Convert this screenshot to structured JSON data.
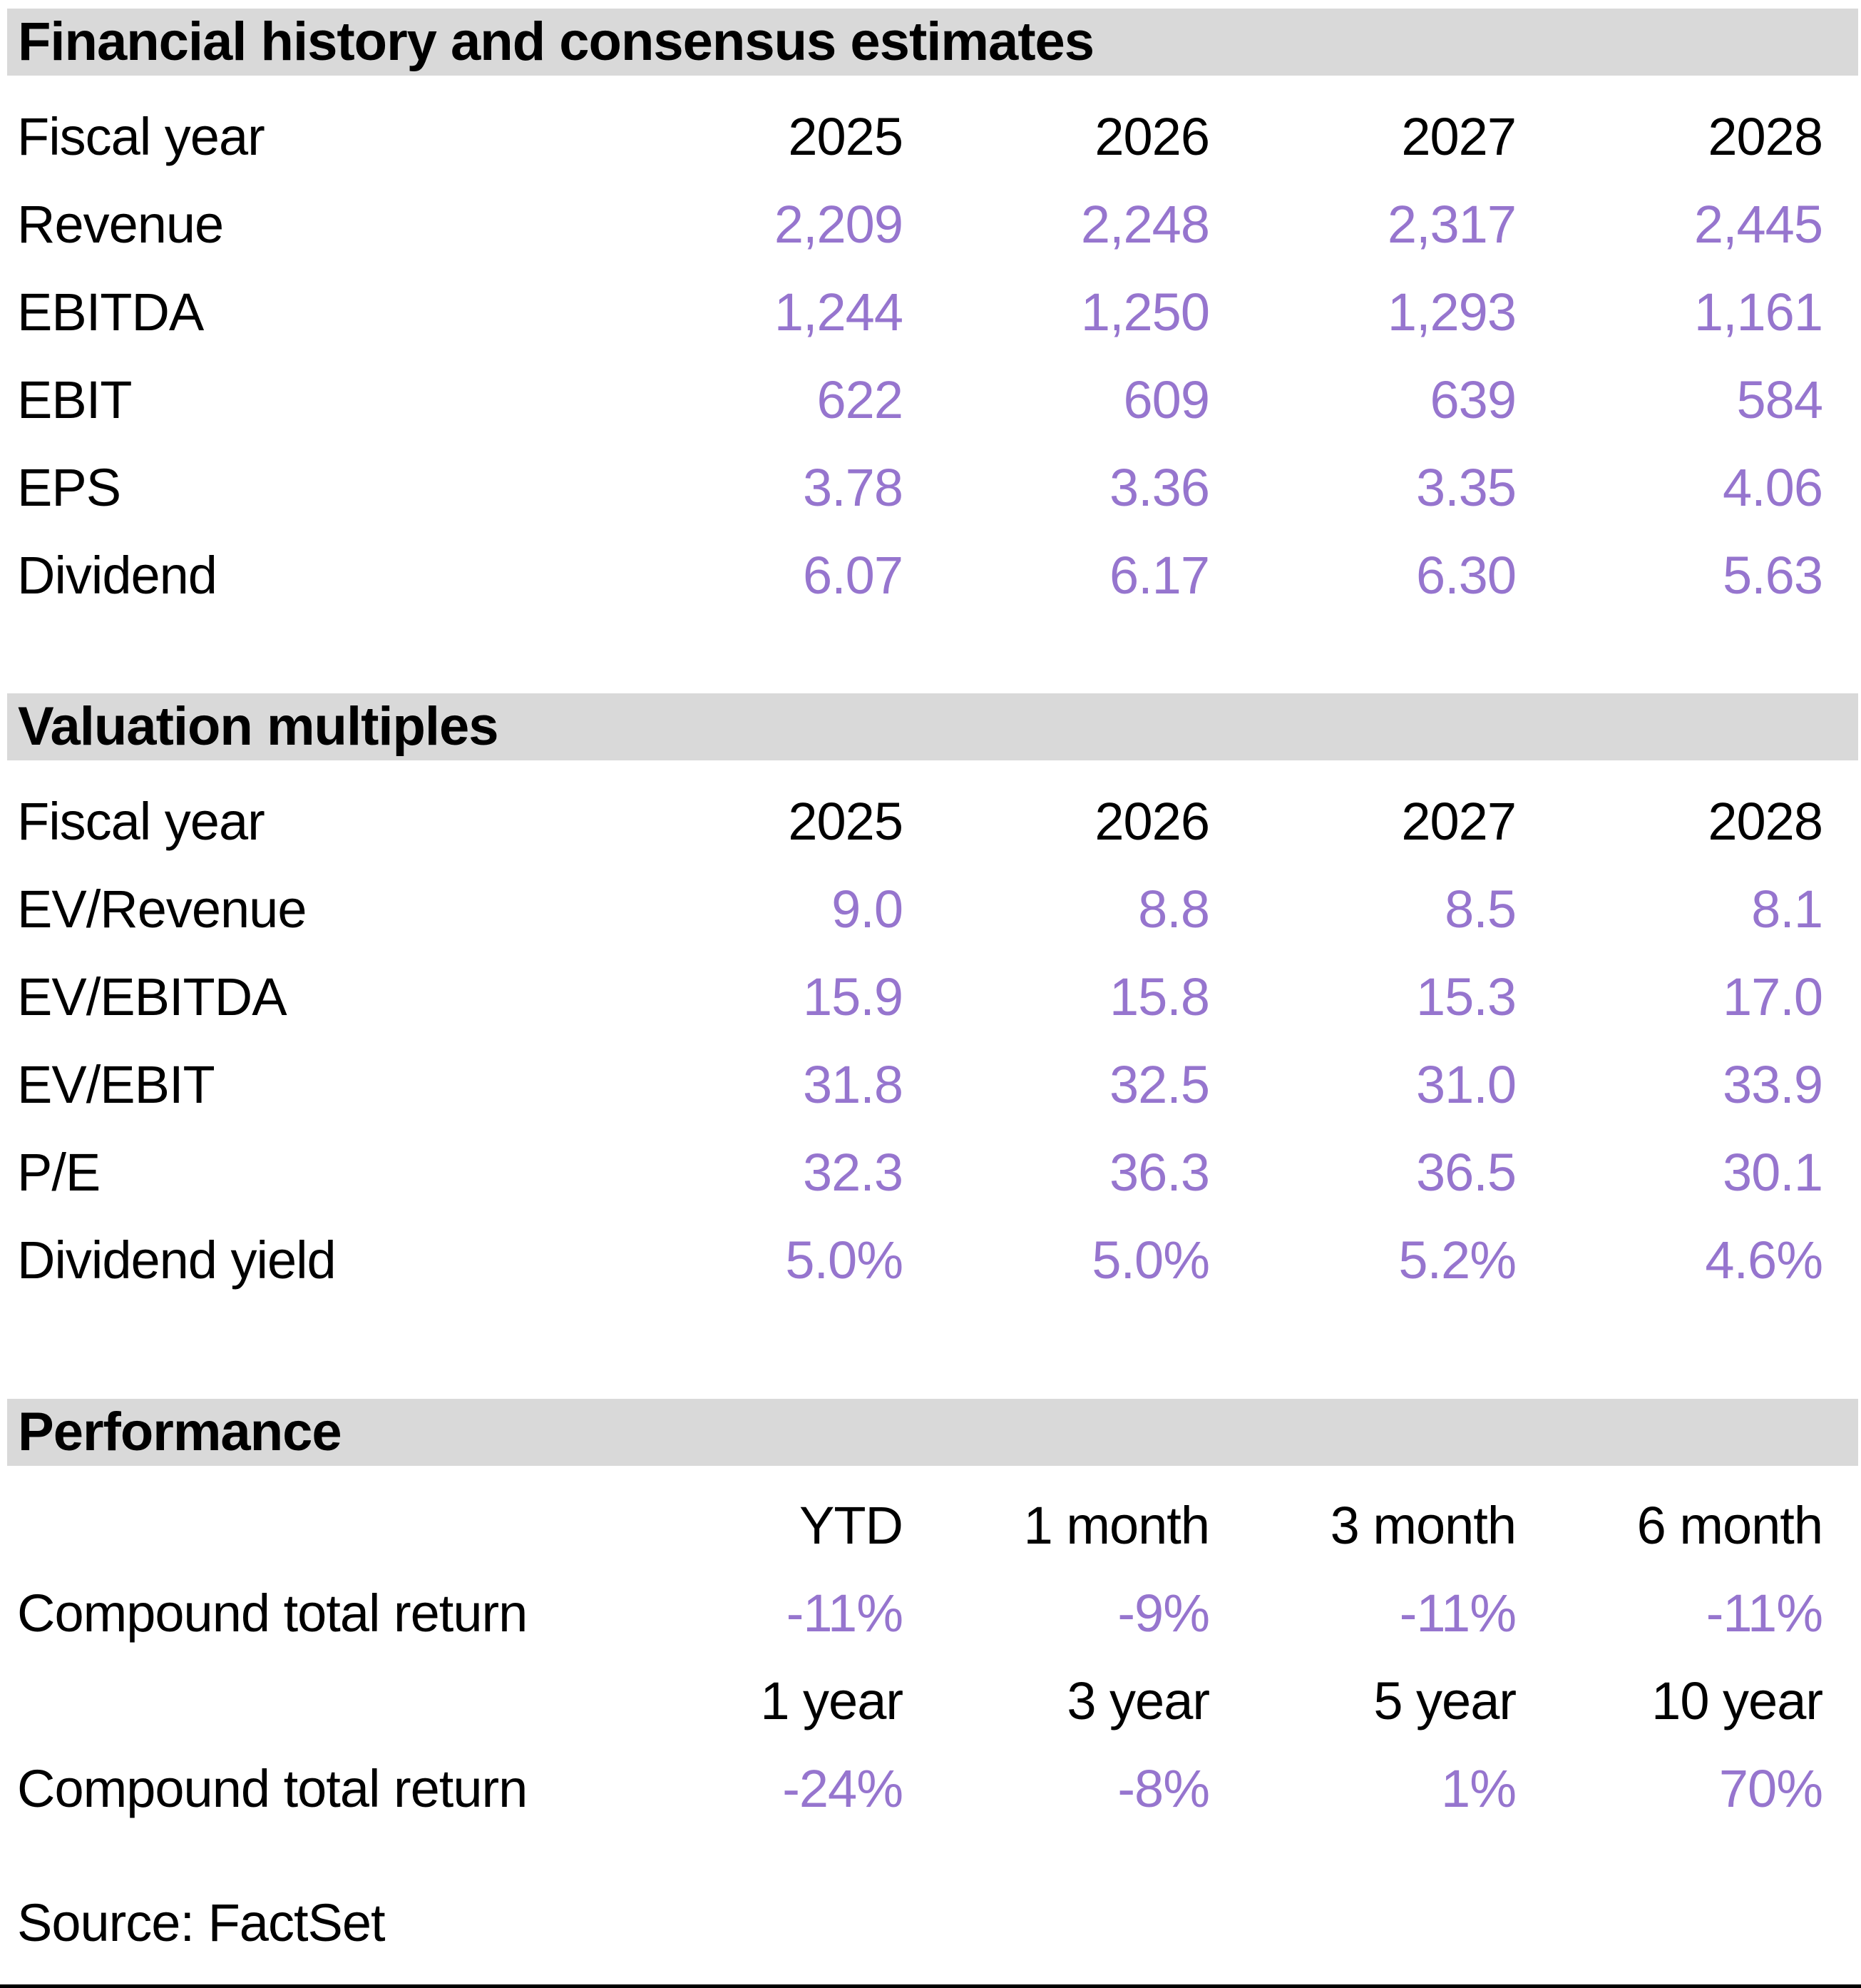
{
  "colors": {
    "accent_purple": "#9675CE",
    "header_bg": "#D9D9D9",
    "text_black": "#000000"
  },
  "financial_history": {
    "title": "Financial history and consensus estimates",
    "fiscal_year_label": "Fiscal year",
    "years": [
      "2025",
      "2026",
      "2027",
      "2028"
    ],
    "rows": [
      {
        "label": "Revenue",
        "values": [
          "2,209",
          "2,248",
          "2,317",
          "2,445"
        ]
      },
      {
        "label": "EBITDA",
        "values": [
          "1,244",
          "1,250",
          "1,293",
          "1,161"
        ]
      },
      {
        "label": "EBIT",
        "values": [
          "622",
          "609",
          "639",
          "584"
        ]
      },
      {
        "label": "EPS",
        "values": [
          "3.78",
          "3.36",
          "3.35",
          "4.06"
        ]
      },
      {
        "label": "Dividend",
        "values": [
          "6.07",
          "6.17",
          "6.30",
          "5.63"
        ]
      }
    ]
  },
  "valuation_multiples": {
    "title": "Valuation multiples",
    "fiscal_year_label": "Fiscal year",
    "years": [
      "2025",
      "2026",
      "2027",
      "2028"
    ],
    "rows": [
      {
        "label": "EV/Revenue",
        "values": [
          "9.0",
          "8.8",
          "8.5",
          "8.1"
        ]
      },
      {
        "label": "EV/EBITDA",
        "values": [
          "15.9",
          "15.8",
          "15.3",
          "17.0"
        ]
      },
      {
        "label": "EV/EBIT",
        "values": [
          "31.8",
          "32.5",
          "31.0",
          "33.9"
        ]
      },
      {
        "label": "P/E",
        "values": [
          "32.3",
          "36.3",
          "36.5",
          "30.1"
        ]
      },
      {
        "label": "Dividend yield",
        "values": [
          "5.0%",
          "5.0%",
          "5.2%",
          "4.6%"
        ]
      }
    ]
  },
  "performance": {
    "title": "Performance",
    "short_periods": [
      "YTD",
      "1 month",
      "3 month",
      "6 month"
    ],
    "short_row": {
      "label": "Compound total return",
      "values": [
        "-11%",
        "-9%",
        "-11%",
        "-11%"
      ]
    },
    "long_periods": [
      "1 year",
      "3 year",
      "5 year",
      "10 year"
    ],
    "long_row": {
      "label": "Compound total return",
      "values": [
        "-24%",
        "-8%",
        "1%",
        "70%"
      ]
    }
  },
  "source_line": "Source: FactSet"
}
